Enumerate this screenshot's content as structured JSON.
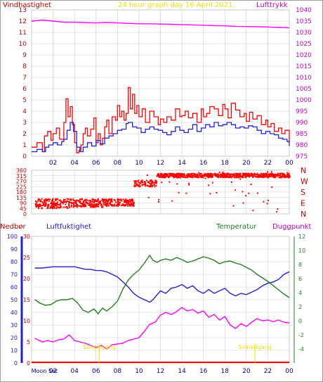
{
  "chart_data": {
    "type": "line",
    "title": "24 hour graph day   16 April 2021",
    "colors": {
      "wind": "#ff0000",
      "gust": "#ff0000",
      "wind_avg": "#2020e0",
      "pressure": "#ff00ff",
      "direction": "#ff0000",
      "rain": "#ff0000",
      "humidity": "#2020d0",
      "temperature": "#208020",
      "dewpoint": "#ff00ff",
      "sun": "#e8e000",
      "moon": "#0000a0",
      "grid": "#c8c8c8",
      "axis_text": "#000000"
    },
    "panels": [
      {
        "id": "wind-pressure",
        "left_label": "Vindhastighet",
        "right_label": "Lufttrykk",
        "left_ylim": [
          0,
          13
        ],
        "left_ticks": [
          "0",
          "1",
          "2",
          "3",
          "4",
          "5",
          "6",
          "7",
          "8",
          "9",
          "10",
          "11",
          "12",
          "13"
        ],
        "right_ylim": [
          975,
          1040
        ],
        "right_ticks": [
          "975",
          "980",
          "985",
          "990",
          "995",
          "1000",
          "1005",
          "1010",
          "1015",
          "1020",
          "1025",
          "1030",
          "1035",
          "1040"
        ],
        "x_ticks": [
          "02",
          "04",
          "06",
          "08",
          "10",
          "12",
          "14",
          "16",
          "18",
          "20",
          "22",
          "00"
        ],
        "x_tick_hours": [
          2,
          4,
          6,
          8,
          10,
          12,
          14,
          16,
          18,
          20,
          22,
          24
        ],
        "series": [
          {
            "key": "gust",
            "axis": "left",
            "x": [
              0,
              0.5,
              1,
              1.2,
              1.5,
              1.8,
              2,
              2.3,
              2.6,
              3,
              3.2,
              3.4,
              3.6,
              3.8,
              4,
              4.2,
              4.4,
              4.6,
              4.8,
              5,
              5.2,
              5.5,
              5.8,
              6,
              6.2,
              6.4,
              6.6,
              6.8,
              7,
              7.2,
              7.5,
              7.8,
              8,
              8.2,
              8.4,
              8.6,
              8.8,
              9,
              9.2,
              9.4,
              9.6,
              9.8,
              10,
              10.3,
              10.6,
              11,
              11.4,
              11.8,
              12,
              12.3,
              12.6,
              13,
              13.4,
              13.8,
              14,
              14.3,
              14.6,
              15,
              15.4,
              15.8,
              16,
              16.3,
              16.6,
              17,
              17.4,
              17.8,
              18,
              18.3,
              18.6,
              19,
              19.4,
              19.8,
              20,
              20.3,
              20.6,
              21,
              21.4,
              21.8,
              22,
              22.3,
              22.6,
              23,
              23.3,
              23.6,
              24
            ],
            "values": [
              0.8,
              1.2,
              0.4,
              1.8,
              2.2,
              1.4,
              2,
              2.5,
              1.5,
              3,
              5.1,
              3.5,
              4.4,
              2.8,
              1.2,
              0.3,
              0.5,
              1,
              2,
              2.5,
              1.8,
              2.4,
              3.4,
              1.2,
              2,
              1,
              1.6,
              2.6,
              3.2,
              2,
              3.5,
              3.2,
              4.5,
              3.5,
              4,
              3.2,
              3.8,
              6.1,
              4.2,
              5.5,
              3.8,
              4.5,
              3.5,
              4.2,
              3,
              4,
              3.5,
              2.8,
              3.3,
              3,
              3.5,
              3.2,
              4.2,
              3.5,
              3.6,
              4,
              3.4,
              3.8,
              3,
              4.2,
              3.5,
              3.8,
              4.4,
              4.2,
              3.6,
              4.6,
              4.2,
              3.4,
              4.7,
              4.1,
              3.5,
              3.8,
              3.1,
              3.9,
              3.3,
              3.6,
              2.8,
              3.2,
              2.6,
              2.9,
              2.2,
              2.5,
              2,
              2.3,
              1.2
            ]
          },
          {
            "key": "wind_avg",
            "axis": "left",
            "x": [
              0,
              0.5,
              1,
              1.3,
              1.6,
              2,
              2.4,
              2.8,
              3,
              3.3,
              3.6,
              3.9,
              4.2,
              4.5,
              4.8,
              5.2,
              5.6,
              6,
              6.4,
              6.8,
              7.2,
              7.6,
              8,
              8.4,
              8.8,
              9,
              9.4,
              9.8,
              10.2,
              10.6,
              11,
              11.4,
              11.8,
              12.2,
              12.6,
              13,
              13.4,
              13.8,
              14.2,
              14.6,
              15,
              15.4,
              15.8,
              16.2,
              16.6,
              17,
              17.4,
              17.8,
              18.2,
              18.6,
              19,
              19.4,
              19.8,
              20.2,
              20.6,
              21,
              21.4,
              21.8,
              22.2,
              22.6,
              23,
              23.4,
              23.8,
              24
            ],
            "values": [
              0.4,
              0.6,
              0.4,
              0.8,
              1,
              1.2,
              1,
              1.3,
              1.5,
              2.3,
              3,
              2.2,
              0.8,
              0.4,
              0.8,
              1.2,
              0.9,
              1.4,
              1.1,
              1.6,
              1.8,
              2,
              2.3,
              2.4,
              2.9,
              3,
              2.6,
              2.5,
              2.1,
              2.4,
              2.6,
              2.4,
              2.3,
              2.1,
              1.9,
              2.2,
              2.6,
              2.3,
              2.1,
              2.4,
              2.8,
              2.2,
              2.5,
              2.8,
              2.6,
              3,
              2.7,
              2.8,
              3,
              2.8,
              2.5,
              2.6,
              2.5,
              2.7,
              2.6,
              2.3,
              2,
              2.2,
              2,
              1.9,
              1.6,
              1.5,
              1.3,
              0.9
            ]
          },
          {
            "key": "pressure",
            "axis": "right",
            "x": [
              0,
              1,
              2,
              3,
              4,
              5,
              6,
              7,
              8,
              9,
              10,
              11,
              12,
              13,
              14,
              15,
              16,
              17,
              18,
              19,
              20,
              21,
              22,
              23,
              24
            ],
            "values": [
              1035,
              1035.5,
              1035,
              1034.5,
              1034.5,
              1034.3,
              1034.2,
              1034.4,
              1034.2,
              1034,
              1033.8,
              1033.8,
              1033.7,
              1033.6,
              1033.4,
              1033.3,
              1033.2,
              1033,
              1032.9,
              1032.7,
              1032.6,
              1032.5,
              1032.4,
              1032.2,
              1032
            ]
          }
        ]
      },
      {
        "id": "wind-direction",
        "left_ylim": [
          0,
          360
        ],
        "left_ticks": [
          "0",
          "45",
          "90",
          "135",
          "180",
          "225",
          "270",
          "315",
          "360"
        ],
        "right_ticks": [
          "N",
          "E",
          "S",
          "W",
          "N"
        ],
        "direction_bands": [
          {
            "x0": 0.3,
            "x1": 3.8,
            "y": [
              50,
              130
            ],
            "density": 1
          },
          {
            "x0": 3.8,
            "x1": 6.6,
            "y": [
              60,
              130
            ],
            "density": 1
          },
          {
            "x0": 6.6,
            "x1": 9.5,
            "y": [
              70,
              130
            ],
            "density": 1
          },
          {
            "x0": 9.5,
            "x1": 11.6,
            "y": [
              230,
              285
            ],
            "density": 0.8
          },
          {
            "x0": 11.6,
            "x1": 24,
            "y": [
              305,
              340
            ],
            "density": 1
          }
        ]
      },
      {
        "id": "rain-humidity-temp-dew",
        "left_label_1": "Nedbør",
        "left_label_2": "Luftfuktighet",
        "right_label_1": "Temperatur",
        "right_label_2": "Duggpunkt",
        "rain_ylim": [
          0,
          30
        ],
        "rain_ticks": [
          "0",
          "5",
          "10",
          "15",
          "20",
          "25",
          "30"
        ],
        "humidity_ylim": [
          0,
          100
        ],
        "humidity_ticks": [
          "0",
          "10",
          "20",
          "30",
          "40",
          "50",
          "60",
          "70",
          "80",
          "90",
          "100"
        ],
        "temp_ylim": [
          -6,
          12
        ],
        "temp_ticks": [
          "-4",
          "-2",
          "0",
          "2",
          "4",
          "6",
          "8",
          "10",
          "12"
        ],
        "series": [
          {
            "key": "humidity",
            "axis": "humidity",
            "x": [
              0.3,
              1,
              2,
              3,
              4,
              5,
              5.5,
              6,
              6.5,
              7,
              7.5,
              8,
              8.5,
              9,
              9.5,
              10,
              10.5,
              11,
              11.3,
              11.7,
              12,
              12.5,
              13,
              13.5,
              14,
              14.5,
              15,
              15.5,
              16,
              16.5,
              17,
              17.5,
              18,
              18.5,
              19,
              19.5,
              20,
              20.5,
              21,
              21.5,
              22,
              22.5,
              23,
              23.5,
              24
            ],
            "values": [
              75,
              75,
              76,
              76,
              76,
              74,
              74,
              73,
              73,
              72,
              70,
              68,
              64,
              60,
              55,
              52,
              50,
              48,
              50,
              54,
              57,
              55,
              59,
              60,
              62,
              59,
              61,
              57,
              55,
              58,
              55,
              57,
              59,
              55,
              53,
              55,
              54,
              56,
              58,
              61,
              63,
              64,
              66,
              70,
              72
            ]
          },
          {
            "key": "temperature",
            "axis": "temp",
            "x": [
              0.3,
              0.8,
              1.3,
              1.8,
              2.3,
              2.8,
              3.3,
              3.8,
              4.3,
              4.8,
              5.3,
              5.8,
              6.2,
              6.6,
              7,
              7.5,
              8,
              8.5,
              9,
              9.5,
              10,
              10.5,
              11,
              11.3,
              11.7,
              12,
              12.5,
              13,
              13.5,
              14,
              14.5,
              15,
              15.5,
              16,
              16.5,
              17,
              17.5,
              18,
              18.5,
              19,
              19.5,
              20,
              20.5,
              21,
              21.5,
              22,
              22.5,
              23,
              23.5,
              24
            ],
            "values": [
              3,
              2.5,
              2.2,
              2.3,
              2.8,
              3,
              3,
              3.2,
              2.5,
              1.5,
              1.2,
              1.7,
              1,
              1.8,
              1.4,
              2,
              2.8,
              4.5,
              5.8,
              6.6,
              7.2,
              8.2,
              9.3,
              8.6,
              8.3,
              8.6,
              8.8,
              8.6,
              9,
              8.7,
              8.3,
              8.5,
              8.8,
              9.1,
              8.9,
              8.6,
              8.1,
              8.4,
              8.5,
              8.2,
              8,
              7.6,
              7.2,
              6.6,
              6.1,
              5.6,
              5,
              4.4,
              3.8,
              3.3
            ]
          },
          {
            "key": "dewpoint",
            "axis": "temp",
            "x": [
              0.3,
              1,
              1.5,
              2,
              2.5,
              3,
              3.5,
              4,
              4.5,
              5,
              5.5,
              6,
              6.5,
              7,
              7.5,
              8,
              8.5,
              9,
              9.5,
              10,
              10.5,
              11,
              11.5,
              12,
              12.5,
              13,
              13.5,
              14,
              14.5,
              15,
              15.5,
              16,
              16.5,
              17,
              17.5,
              18,
              18.5,
              19,
              19.5,
              20,
              20.5,
              21,
              21.5,
              22,
              22.5,
              23,
              23.5,
              24
            ],
            "values": [
              -2.5,
              -3,
              -2.8,
              -3,
              -2.7,
              -2.6,
              -2,
              -2.8,
              -3,
              -3.2,
              -3.5,
              -3.8,
              -3.5,
              -4,
              -3.4,
              -3.3,
              -3.2,
              -2.8,
              -2.6,
              -2.4,
              -1.5,
              -0.5,
              -0.2,
              0.8,
              1.2,
              0.9,
              1.3,
              1.9,
              1.4,
              1.6,
              1.1,
              1.4,
              0.5,
              0.9,
              0.1,
              0.6,
              -0.6,
              -1.1,
              -0.4,
              -0.8,
              -0.2,
              0.3,
              0,
              0.1,
              -0.1,
              0.1,
              -0.2,
              -0.3
            ]
          }
        ],
        "annotations": [
          {
            "text": "Soloppgang",
            "hour": 6.3,
            "color_key": "sun"
          },
          {
            "text": "Solnedgang",
            "hour": 20.8,
            "color_key": "sun"
          },
          {
            "text": "Moon Set",
            "hour": 1.2,
            "color_key": "moon"
          }
        ],
        "x_ticks": [
          "02",
          "04",
          "06",
          "08",
          "10",
          "12",
          "14",
          "16",
          "18",
          "20",
          "22",
          "00"
        ],
        "x_tick_hours": [
          2,
          4,
          6,
          8,
          10,
          12,
          14,
          16,
          18,
          20,
          22,
          24
        ]
      }
    ]
  }
}
